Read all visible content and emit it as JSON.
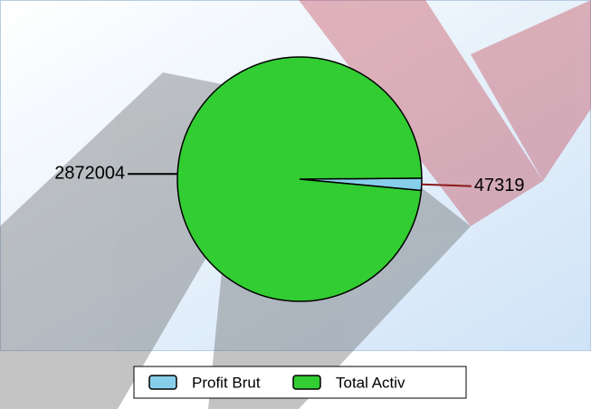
{
  "chart_data": {
    "type": "pie",
    "categories": [
      "Profit Brut",
      "Total Activ"
    ],
    "values": [
      47319,
      2872004
    ],
    "colors": [
      "#87ceeb",
      "#32cd32"
    ],
    "legend": "bottom"
  }
}
